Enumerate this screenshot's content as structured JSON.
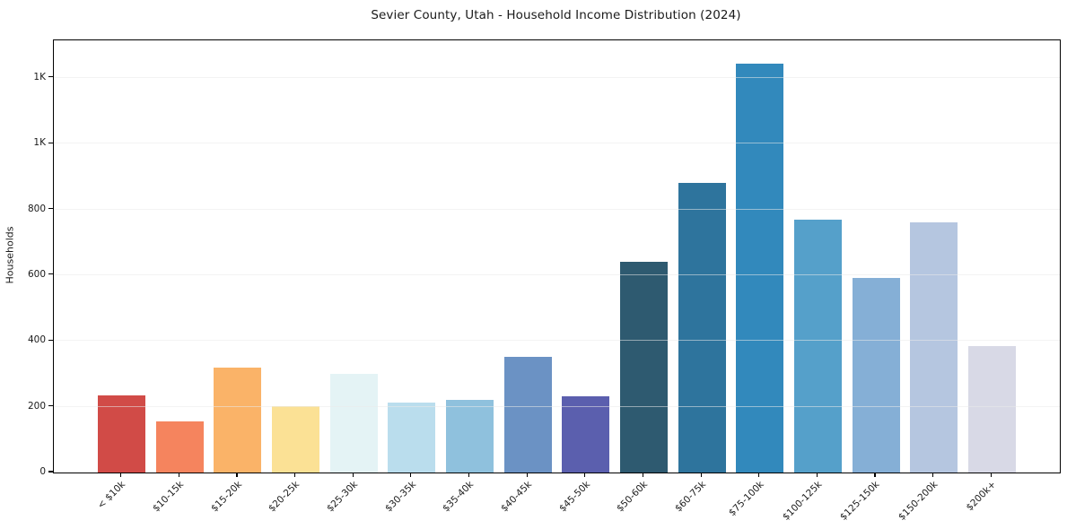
{
  "title": "Sevier County, Utah - Household Income Distribution (2024)",
  "chart_data": {
    "type": "bar",
    "title": "Sevier County, Utah - Household Income Distribution (2024)",
    "xlabel": "",
    "ylabel": "Households",
    "categories": [
      "< $10k",
      "$10-15k",
      "$15-20k",
      "$20-25k",
      "$25-30k",
      "$30-35k",
      "$35-40k",
      "$40-45k",
      "$45-50k",
      "$50-60k",
      "$60-75k",
      "$75-100k",
      "$100-125k",
      "$125-150k",
      "$150-200k",
      "$200k+"
    ],
    "values": [
      235,
      155,
      318,
      203,
      300,
      213,
      222,
      353,
      231,
      641,
      880,
      1242,
      770,
      592,
      762,
      384
    ],
    "bar_colors": [
      "#d14b47",
      "#f5845e",
      "#fab368",
      "#fbe195",
      "#e4f3f5",
      "#badded",
      "#8fc1dd",
      "#6b92c4",
      "#5b5fae",
      "#2e5a70",
      "#2e749d",
      "#3289bc",
      "#55a0ca",
      "#85afd6",
      "#b5c6e0",
      "#d8d9e6"
    ],
    "ylim": [
      0,
      1314
    ],
    "yticks": [
      {
        "value": 0,
        "label": "0"
      },
      {
        "value": 200,
        "label": "200"
      },
      {
        "value": 400,
        "label": "400"
      },
      {
        "value": 600,
        "label": "600"
      },
      {
        "value": 800,
        "label": "800"
      },
      {
        "value": 1000,
        "label": "1K"
      },
      {
        "value": 1200,
        "label": "1K"
      }
    ],
    "grid": "horizontal",
    "grid_color": "#e9e9e9",
    "spine_color": "#000000",
    "text_color": "#1a1a1a",
    "background": "#ffffff",
    "legend": "none"
  }
}
